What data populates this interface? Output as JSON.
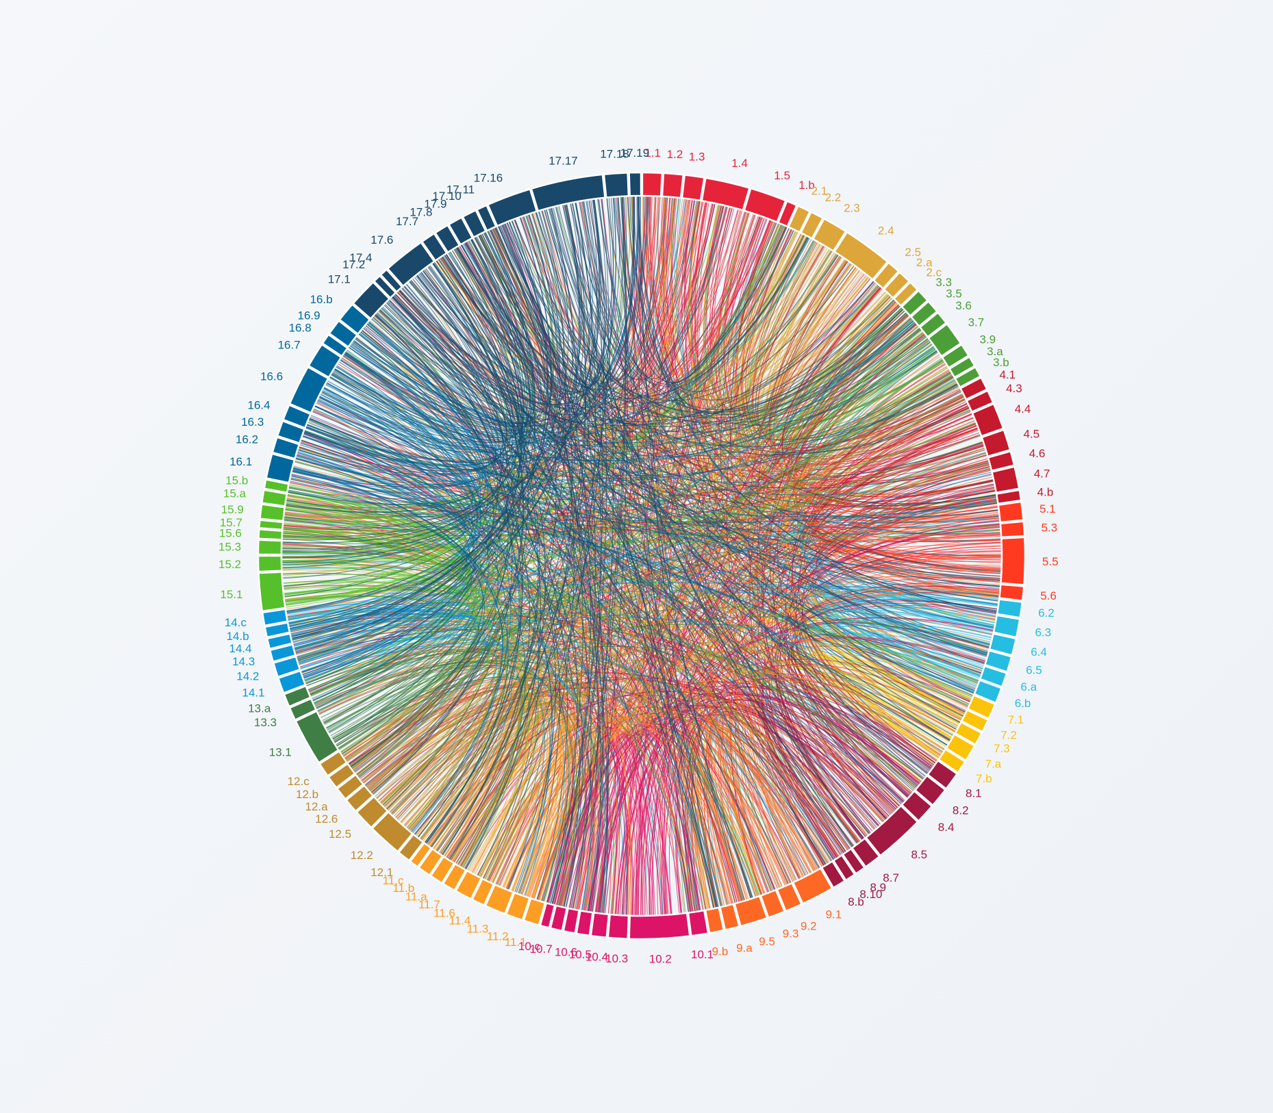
{
  "chart_data": {
    "type": "chord",
    "title": "",
    "goals": [
      {
        "id": "1",
        "color": "#e5243b",
        "targets": [
          [
            "1.1",
            1.5
          ],
          [
            "1.2",
            1.5
          ],
          [
            "1.3",
            1.5
          ],
          [
            "1.4",
            3.4
          ],
          [
            "1.5",
            2.8
          ],
          [
            "1.b",
            0.8
          ]
        ]
      },
      {
        "id": "2",
        "color": "#dda63a",
        "targets": [
          [
            "2.1",
            1
          ],
          [
            "2.2",
            1
          ],
          [
            "2.3",
            1.9
          ],
          [
            "2.4",
            3.8
          ],
          [
            "2.5",
            1
          ],
          [
            "2.a",
            1
          ],
          [
            "2.c",
            0.8
          ]
        ]
      },
      {
        "id": "3",
        "color": "#4c9f38",
        "targets": [
          [
            "3.3",
            1
          ],
          [
            "3.5",
            1
          ],
          [
            "3.6",
            1
          ],
          [
            "3.7",
            1.8
          ],
          [
            "3.9",
            1
          ],
          [
            "3.a",
            0.8
          ],
          [
            "3.b",
            0.8
          ]
        ]
      },
      {
        "id": "4",
        "color": "#c5192d",
        "targets": [
          [
            "4.1",
            1
          ],
          [
            "4.3",
            1
          ],
          [
            "4.4",
            2
          ],
          [
            "4.5",
            1.6
          ],
          [
            "4.6",
            1.1
          ],
          [
            "4.7",
            1.7
          ],
          [
            "4.b",
            0.8
          ]
        ]
      },
      {
        "id": "5",
        "color": "#ff3a21",
        "targets": [
          [
            "5.1",
            1.4
          ],
          [
            "5.3",
            1.1
          ],
          [
            "5.5",
            3.6
          ],
          [
            "5.6",
            1.1
          ]
        ]
      },
      {
        "id": "6",
        "color": "#26bde2",
        "targets": [
          [
            "6.2",
            1.2
          ],
          [
            "6.3",
            1.4
          ],
          [
            "6.4",
            1.3
          ],
          [
            "6.5",
            1.2
          ],
          [
            "6.a",
            1.1
          ],
          [
            "6.b",
            1.2
          ]
        ]
      },
      {
        "id": "7",
        "color": "#fcc30b",
        "targets": [
          [
            "7.1",
            1.2
          ],
          [
            "7.2",
            1
          ],
          [
            "7.3",
            1
          ],
          [
            "7.a",
            1.3
          ],
          [
            "7.b",
            1
          ]
        ]
      },
      {
        "id": "8",
        "color": "#a21942",
        "targets": [
          [
            "8.1",
            1.4
          ],
          [
            "8.2",
            1.5
          ],
          [
            "8.4",
            1.5
          ],
          [
            "8.5",
            3.8
          ],
          [
            "8.7",
            1.3
          ],
          [
            "8.9",
            0.8
          ],
          [
            "8.10",
            0.8
          ],
          [
            "8.b",
            1
          ]
        ]
      },
      {
        "id": "9",
        "color": "#fd6925",
        "targets": [
          [
            "9.1",
            2.5
          ],
          [
            "9.2",
            1.3
          ],
          [
            "9.3",
            1.3
          ],
          [
            "9.5",
            2.1
          ],
          [
            "9.a",
            1.1
          ],
          [
            "9.b",
            1.1
          ]
        ]
      },
      {
        "id": "10",
        "color": "#dd1367",
        "targets": [
          [
            "10.1",
            1.3
          ],
          [
            "10.2",
            4.6
          ],
          [
            "10.3",
            1.5
          ],
          [
            "10.4",
            1.2
          ],
          [
            "10.5",
            1
          ],
          [
            "10.6",
            0.9
          ],
          [
            "10.7",
            0.9
          ],
          [
            "10.c",
            0.7
          ]
        ]
      },
      {
        "id": "11",
        "color": "#fd9d24",
        "targets": [
          [
            "11.1",
            1.2
          ],
          [
            "11.2",
            1.3
          ],
          [
            "11.3",
            1.6
          ],
          [
            "11.4",
            1
          ],
          [
            "11.6",
            1.3
          ],
          [
            "11.7",
            1
          ],
          [
            "11.a",
            1
          ],
          [
            "11.b",
            1
          ],
          [
            "11.c",
            0.7
          ]
        ]
      },
      {
        "id": "12",
        "color": "#bf8b2e",
        "targets": [
          [
            "12.1",
            1
          ],
          [
            "12.2",
            2.6
          ],
          [
            "12.5",
            1.6
          ],
          [
            "12.6",
            1.1
          ],
          [
            "12.a",
            1
          ],
          [
            "12.b",
            1
          ],
          [
            "12.c",
            1.1
          ]
        ]
      },
      {
        "id": "13",
        "color": "#3f7e44",
        "targets": [
          [
            "13.1",
            3.6
          ],
          [
            "13.3",
            1
          ],
          [
            "13.a",
            1
          ]
        ]
      },
      {
        "id": "14",
        "color": "#0a97d9",
        "targets": [
          [
            "14.1",
            1.2
          ],
          [
            "14.2",
            1.1
          ],
          [
            "14.3",
            0.9
          ],
          [
            "14.4",
            0.8
          ],
          [
            "14.b",
            0.8
          ],
          [
            "14.c",
            1
          ]
        ]
      },
      {
        "id": "15",
        "color": "#56c02b",
        "targets": [
          [
            "15.1",
            2.9
          ],
          [
            "15.2",
            1.2
          ],
          [
            "15.3",
            1.1
          ],
          [
            "15.6",
            0.7
          ],
          [
            "15.7",
            0.6
          ],
          [
            "15.9",
            1.1
          ],
          [
            "15.a",
            1
          ],
          [
            "15.b",
            0.7
          ]
        ]
      },
      {
        "id": "16",
        "color": "#00689d",
        "targets": [
          [
            "16.1",
            1.9
          ],
          [
            "16.2",
            1.2
          ],
          [
            "16.3",
            1.2
          ],
          [
            "16.4",
            1.2
          ],
          [
            "16.6",
            3.1
          ],
          [
            "16.7",
            1.9
          ],
          [
            "16.8",
            0.8
          ],
          [
            "16.9",
            1.2
          ],
          [
            "16.b",
            1.5
          ]
        ]
      },
      {
        "id": "17",
        "color": "#19486a",
        "targets": [
          [
            "17.1",
            2.2
          ],
          [
            "17.2",
            0.6
          ],
          [
            "17.4",
            0.6
          ],
          [
            "17.6",
            3.2
          ],
          [
            "17.7",
            1.1
          ],
          [
            "17.8",
            1.1
          ],
          [
            "17.9",
            1.1
          ],
          [
            "17.10",
            1.1
          ],
          [
            "17.11",
            0.8
          ],
          [
            "17.16",
            3.4
          ],
          [
            "17.17",
            5.5
          ],
          [
            "17.18",
            1.8
          ],
          [
            "17.19",
            0.9
          ]
        ]
      }
    ]
  }
}
